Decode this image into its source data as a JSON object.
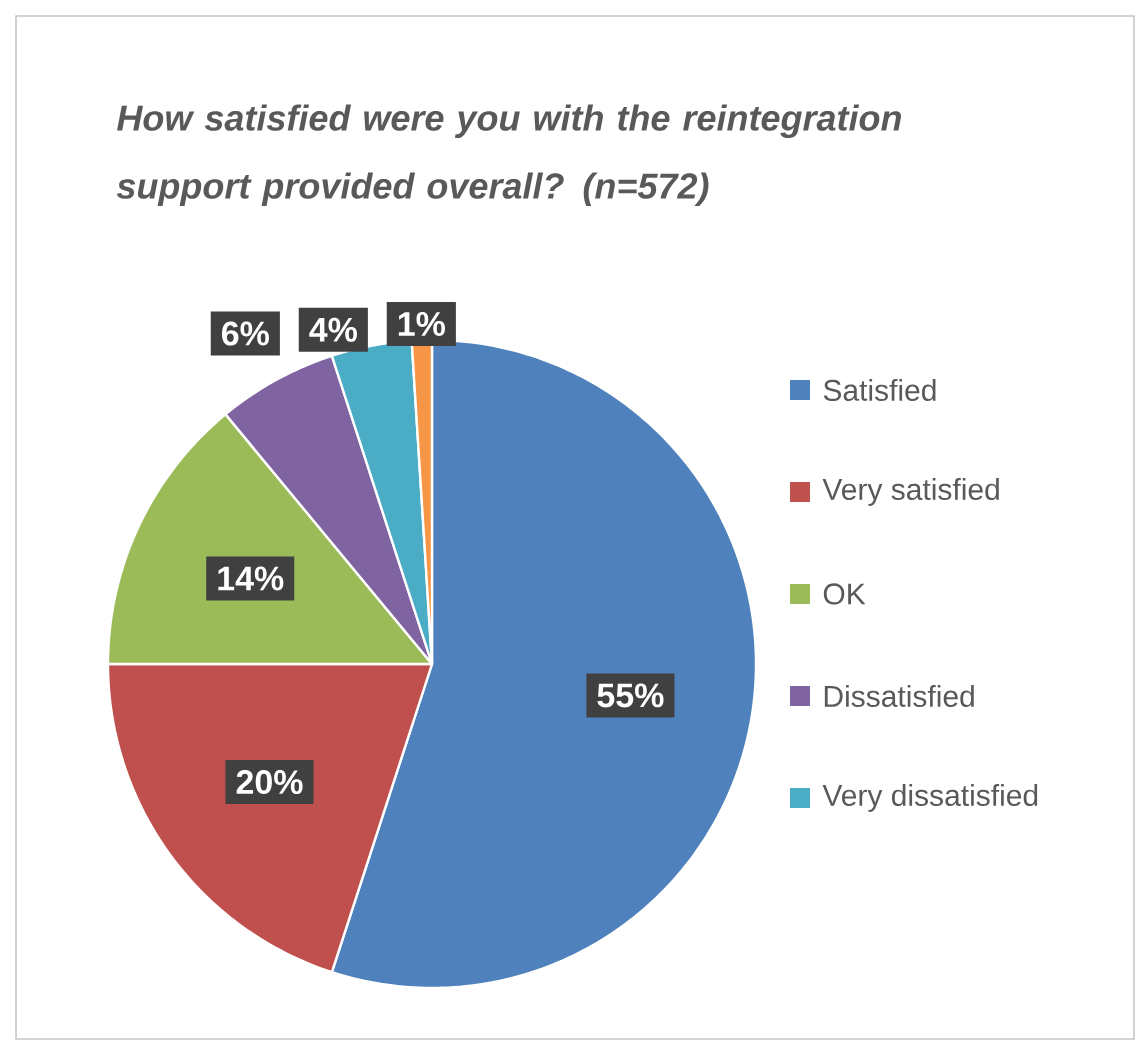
{
  "chart_data": {
    "type": "pie",
    "title": "How satisfied were you with the reintegration support provided overall? (n=572)",
    "categories": [
      "Satisfied",
      "Very satisfied",
      "OK",
      "Dissatisfied",
      "Very dissatisfied",
      null
    ],
    "values": [
      55,
      20,
      14,
      6,
      4,
      1
    ],
    "value_labels": [
      "55%",
      "20%",
      "14%",
      "6%",
      "4%",
      "1%"
    ],
    "colors": [
      "#4f81bd",
      "#c0504d",
      "#9bbb59",
      "#8064a2",
      "#4bacc6",
      "#f79646"
    ],
    "legend": "right"
  }
}
